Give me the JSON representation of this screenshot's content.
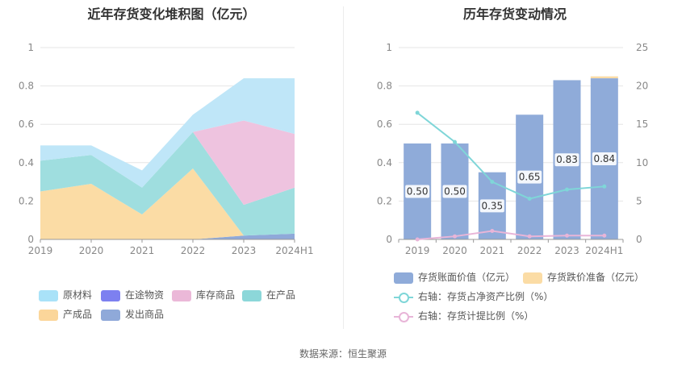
{
  "left": {
    "title": "近年存货变化堆积图（亿元）"
  },
  "right": {
    "title": "历年存货变动情况"
  },
  "source": "数据来源：恒生聚源",
  "chart_data": [
    {
      "type": "area",
      "stacked": true,
      "title": "近年存货变化堆积图（亿元）",
      "x": [
        "2019",
        "2020",
        "2021",
        "2022",
        "2023",
        "2024H1"
      ],
      "ylim": [
        0,
        1
      ],
      "yticks": [
        0,
        0.2,
        0.4,
        0.6,
        0.8,
        1
      ],
      "ytick_labels": [
        "0",
        "0.2",
        "0.4",
        "0.6",
        "0.8",
        "1"
      ],
      "grid": true,
      "legend_position": "bottom",
      "series": [
        {
          "name": "发出商品",
          "color": "#8fa9d9",
          "values": [
            0,
            0,
            0,
            0,
            0.02,
            0.03
          ]
        },
        {
          "name": "产成品",
          "color": "#fbdca5",
          "values": [
            0.25,
            0.29,
            0.13,
            0.37,
            0,
            0
          ]
        },
        {
          "name": "在产品",
          "color": "#9fdedf",
          "values": [
            0.16,
            0.15,
            0.14,
            0.19,
            0.16,
            0.24
          ]
        },
        {
          "name": "库存商品",
          "color": "#eec3df",
          "values": [
            0,
            0,
            0,
            0,
            0.44,
            0.28
          ]
        },
        {
          "name": "在途物资",
          "color": "#7d80f0",
          "values": [
            0,
            0,
            0,
            0,
            0,
            0
          ]
        },
        {
          "name": "原材料",
          "color": "#bfe6f8",
          "values": [
            0.08,
            0.05,
            0.09,
            0.09,
            0.22,
            0.29
          ]
        }
      ],
      "legend_order": [
        "原材料",
        "在途物资",
        "库存商品",
        "在产品",
        "产成品",
        "发出商品"
      ],
      "legend_colors": {
        "原材料": "#a9e2f8",
        "在途物资": "#7d80f0",
        "库存商品": "#ebb8d8",
        "在产品": "#8cd7d9",
        "产成品": "#fbd69a",
        "发出商品": "#8fa9d9"
      }
    },
    {
      "type": "bar",
      "title": "历年存货变动情况",
      "categories": [
        "2019",
        "2020",
        "2021",
        "2022",
        "2023",
        "2024H1"
      ],
      "ylim": [
        0,
        1
      ],
      "yticks": [
        0,
        0.2,
        0.4,
        0.6,
        0.8,
        1
      ],
      "ytick_labels": [
        "0",
        "0.2",
        "0.4",
        "0.6",
        "0.8",
        "1"
      ],
      "y2lim": [
        0,
        25
      ],
      "y2ticks": [
        0,
        5,
        10,
        15,
        20,
        25
      ],
      "y2tick_labels": [
        "0",
        "5",
        "10",
        "15",
        "20",
        "25"
      ],
      "grid": true,
      "legend_position": "bottom",
      "bar_series": [
        {
          "name": "存货账面价值（亿元）",
          "color": "#8fabd9",
          "values": [
            0.5,
            0.5,
            0.35,
            0.65,
            0.83,
            0.84
          ],
          "labels": [
            "0.50",
            "0.50",
            "0.35",
            "0.65",
            "0.83",
            "0.84"
          ]
        },
        {
          "name": "存货跌价准备（亿元）",
          "color": "#fbdca5",
          "values": [
            0,
            0,
            0,
            0,
            0,
            0.01
          ]
        }
      ],
      "line_series": [
        {
          "name": "右轴：存货占净资产比例（%）",
          "axis": "right",
          "color": "#7fd6d8",
          "values": [
            16.5,
            12.7,
            7.5,
            5.3,
            6.5,
            6.9
          ]
        },
        {
          "name": "右轴：存货计提比例（%）",
          "axis": "right",
          "color": "#e8b5d8",
          "values": [
            0,
            0.4,
            1.1,
            0.4,
            0.5,
            0.5
          ]
        }
      ]
    }
  ]
}
